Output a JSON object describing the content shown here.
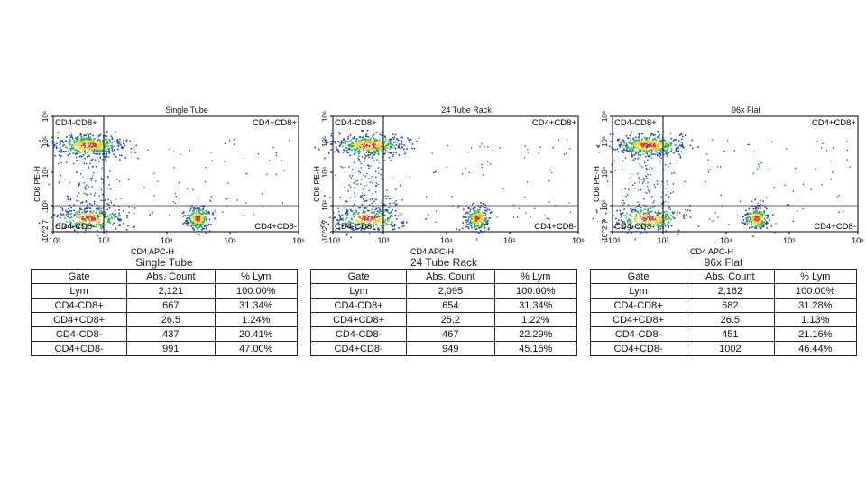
{
  "colors": {
    "density_low": "#1f3fbf",
    "density_mid": "#2bb24c",
    "density_high": "#e8d020",
    "density_peak": "#e0301e",
    "gate_line": "#333333"
  },
  "table_headers": [
    "Gate",
    "Abs. Count",
    "% Lym"
  ],
  "chart_data": [
    {
      "type": "scatter",
      "title": "Single Tube",
      "xlabel": "CD4 APC-H",
      "ylabel": "CD8 PE-H",
      "x_scale": "biexponential",
      "y_scale": "biexponential",
      "xticks": [
        "-10³",
        "10³",
        "10⁴",
        "10⁵",
        "10⁶"
      ],
      "yticks": [
        "-10^2.7",
        "10³",
        "10⁴",
        "10⁵",
        "10⁶"
      ],
      "quadrants": {
        "top_left": "CD4-CD8+",
        "top_right": "CD4+CD8+",
        "bottom_left": "CD4-CD8-",
        "bottom_right": "CD4+CD8-"
      },
      "populations": [
        {
          "gate": "CD4-CD8+",
          "center": [
            400,
            80000
          ]
        },
        {
          "gate": "CD4-CD8-",
          "center": [
            400,
            300
          ]
        },
        {
          "gate": "CD4+CD8-",
          "center": [
            30000,
            300
          ]
        }
      ],
      "table_title": "Single Tube",
      "rows": [
        {
          "gate": "Lym",
          "count": "2,121",
          "pct": "100.00%"
        },
        {
          "gate": "CD4-CD8+",
          "count": "667",
          "pct": "31.34%"
        },
        {
          "gate": "CD4+CD8+",
          "count": "26.5",
          "pct": "1.24%"
        },
        {
          "gate": "CD4-CD8-",
          "count": "437",
          "pct": "20.41%"
        },
        {
          "gate": "CD4+CD8-",
          "count": "991",
          "pct": "47.00%"
        }
      ]
    },
    {
      "type": "scatter",
      "title": "24 Tube Rack",
      "xlabel": "CD4 APC-H",
      "ylabel": "CD8 PE-H",
      "x_scale": "biexponential",
      "y_scale": "biexponential",
      "xticks": [
        "-10³",
        "10³",
        "10⁴",
        "10⁵",
        "10⁶"
      ],
      "yticks": [
        "-10^2.7",
        "10³",
        "10⁴",
        "10⁵",
        "10⁶"
      ],
      "quadrants": {
        "top_left": "CD4-CD8+",
        "top_right": "CD4+CD8+",
        "bottom_left": "CD4-CD8-",
        "bottom_right": "CD4+CD8-"
      },
      "populations": [
        {
          "gate": "CD4-CD8+",
          "center": [
            400,
            80000
          ]
        },
        {
          "gate": "CD4-CD8-",
          "center": [
            400,
            300
          ]
        },
        {
          "gate": "CD4+CD8-",
          "center": [
            30000,
            300
          ]
        }
      ],
      "table_title": "24 Tube Rack",
      "rows": [
        {
          "gate": "Lym",
          "count": "2,095",
          "pct": "100.00%"
        },
        {
          "gate": "CD4-CD8+",
          "count": "654",
          "pct": "31.34%"
        },
        {
          "gate": "CD4+CD8+",
          "count": "25.2",
          "pct": "1.22%"
        },
        {
          "gate": "CD4-CD8-",
          "count": "467",
          "pct": "22.29%"
        },
        {
          "gate": "CD4+CD8-",
          "count": "949",
          "pct": "45.15%"
        }
      ]
    },
    {
      "type": "scatter",
      "title": "96x Flat",
      "xlabel": "CD4 APC-H",
      "ylabel": "CD8 PE-H",
      "x_scale": "biexponential",
      "y_scale": "biexponential",
      "xticks": [
        "-10³",
        "10³",
        "10⁴",
        "10⁵",
        "10⁶"
      ],
      "yticks": [
        "-10^2.7",
        "10³",
        "10⁴",
        "10⁵",
        "10⁶"
      ],
      "quadrants": {
        "top_left": "CD4-CD8+",
        "top_right": "CD4+CD8+",
        "bottom_left": "CD4-CD8-",
        "bottom_right": "CD4+CD8-"
      },
      "populations": [
        {
          "gate": "CD4-CD8+",
          "center": [
            400,
            80000
          ]
        },
        {
          "gate": "CD4-CD8-",
          "center": [
            400,
            300
          ]
        },
        {
          "gate": "CD4+CD8-",
          "center": [
            30000,
            300
          ]
        }
      ],
      "table_title": "96x Flat",
      "rows": [
        {
          "gate": "Lym",
          "count": "2,162",
          "pct": "100.00%"
        },
        {
          "gate": "CD4-CD8+",
          "count": "682",
          "pct": "31.28%"
        },
        {
          "gate": "CD4+CD8+",
          "count": "26.5",
          "pct": "1.13%"
        },
        {
          "gate": "CD4-CD8-",
          "count": "451",
          "pct": "21.16%"
        },
        {
          "gate": "CD4+CD8-",
          "count": "1002",
          "pct": "46.44%"
        }
      ]
    }
  ]
}
